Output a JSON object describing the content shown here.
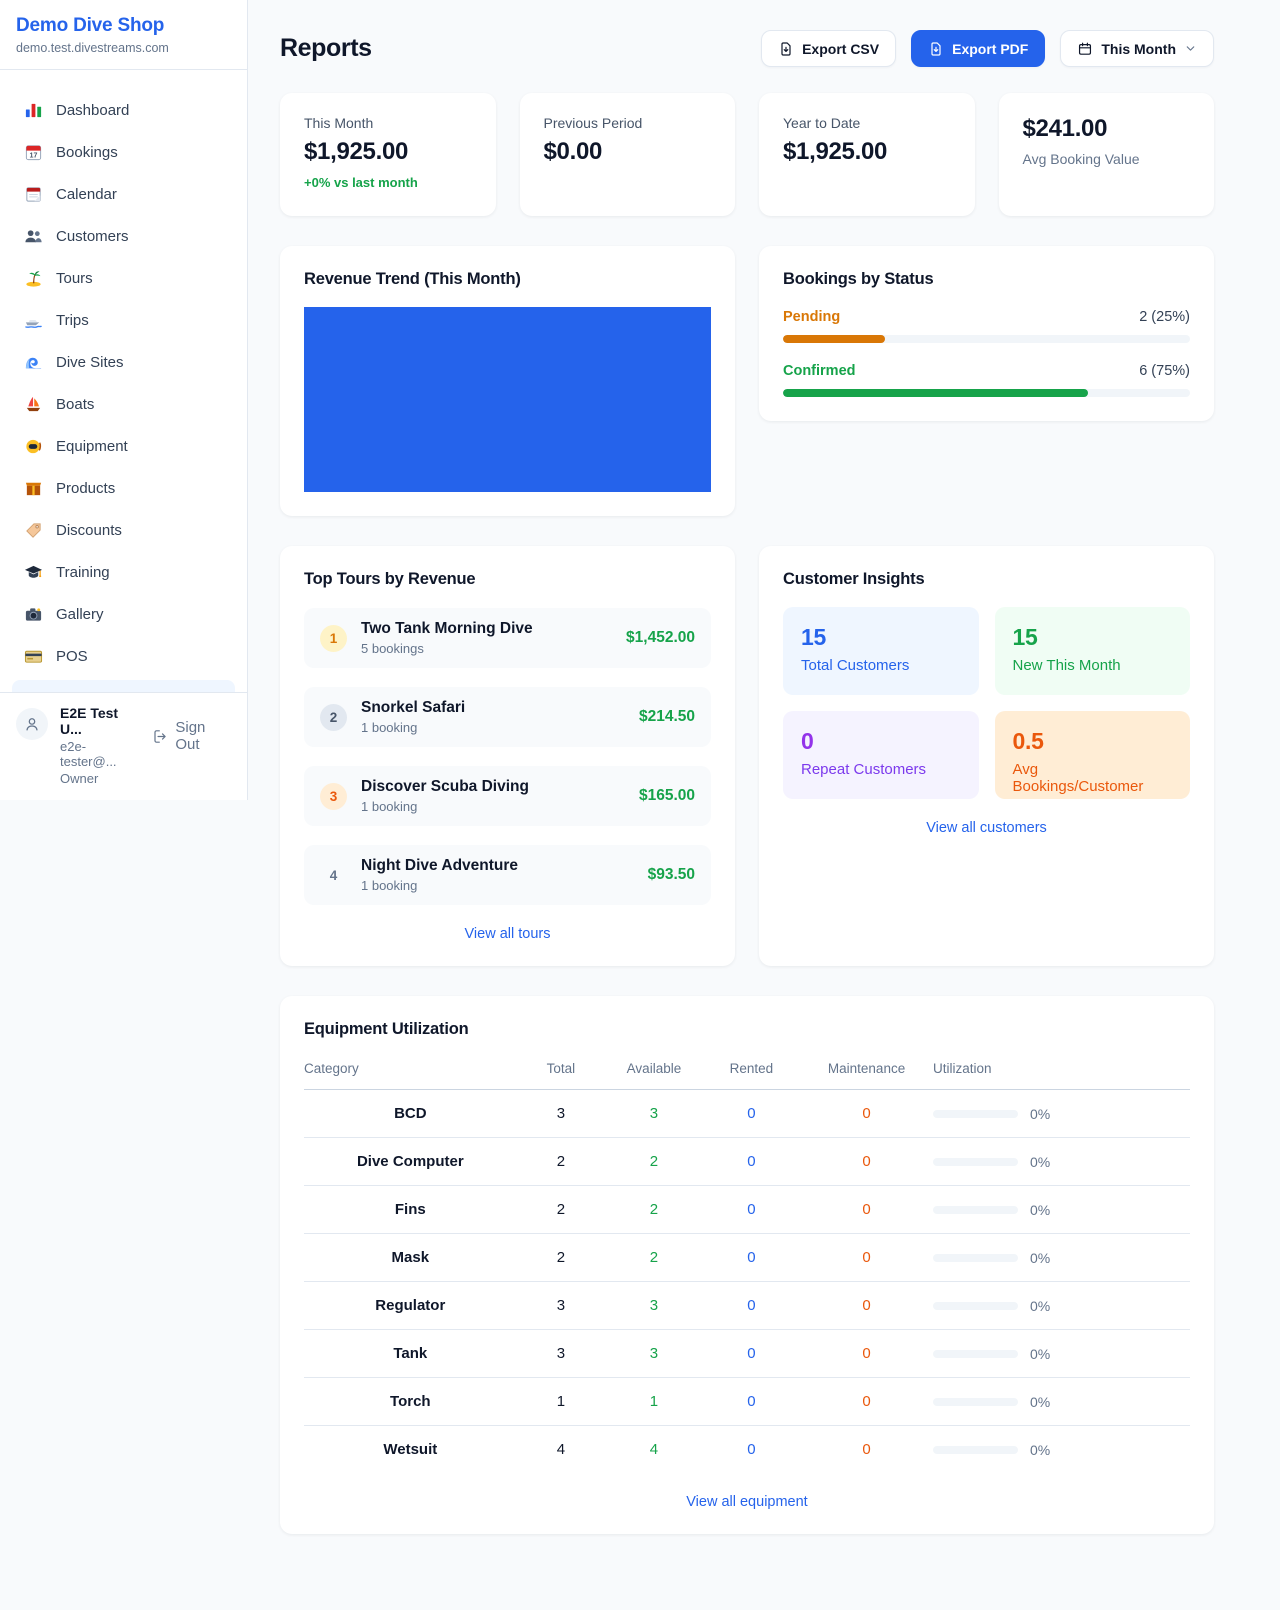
{
  "colors": {
    "accent_blue": "#2563eb",
    "green": "#16a34a",
    "amber": "#d97706",
    "orange": "#ea580c",
    "purple": "#9333ea",
    "page_bg": "#f8fafc"
  },
  "sidebar": {
    "shop_name": "Demo Dive Shop",
    "shop_domain": "demo.test.divestreams.com",
    "items": [
      {
        "icon": "bar-chart-icon",
        "label": "Dashboard"
      },
      {
        "icon": "calendar-date-icon",
        "label": "Bookings"
      },
      {
        "icon": "tear-calendar-icon",
        "label": "Calendar"
      },
      {
        "icon": "people-icon",
        "label": "Customers"
      },
      {
        "icon": "palm-island-icon",
        "label": "Tours"
      },
      {
        "icon": "speedboat-icon",
        "label": "Trips"
      },
      {
        "icon": "wave-icon",
        "label": "Dive Sites"
      },
      {
        "icon": "sailboat-icon",
        "label": "Boats"
      },
      {
        "icon": "dive-mask-icon",
        "label": "Equipment"
      },
      {
        "icon": "package-icon",
        "label": "Products"
      },
      {
        "icon": "tag-icon",
        "label": "Discounts"
      },
      {
        "icon": "graduation-cap-icon",
        "label": "Training"
      },
      {
        "icon": "camera-icon",
        "label": "Gallery"
      },
      {
        "icon": "credit-card-icon",
        "label": "POS"
      }
    ],
    "user": {
      "name": "E2E Test U...",
      "email": "e2e-tester@...",
      "role": "Owner",
      "sign_out_label": "Sign Out"
    }
  },
  "header": {
    "title": "Reports",
    "export_csv_label": "Export CSV",
    "export_pdf_label": "Export PDF",
    "period_label": "This Month"
  },
  "stats": [
    {
      "label": "This Month",
      "value": "$1,925.00",
      "delta": "+0% vs last month"
    },
    {
      "label": "Previous Period",
      "value": "$0.00"
    },
    {
      "label": "Year to Date",
      "value": "$1,925.00"
    },
    {
      "label": "Avg Booking Value",
      "value": "$241.00"
    }
  ],
  "cards": {
    "revenue": {
      "title": "Revenue Trend (This Month)",
      "bar_color": "#2563eb",
      "bar_fill_percent": 100
    },
    "status": {
      "title": "Bookings by Status",
      "rows": [
        {
          "label": "Pending",
          "count": "2 (25%)",
          "percent": 25,
          "color": "#d97706"
        },
        {
          "label": "Confirmed",
          "count": "6 (75%)",
          "percent": 75,
          "color": "#16a34a"
        }
      ]
    },
    "tours": {
      "title": "Top Tours by Revenue",
      "items": [
        {
          "rank": "1",
          "name": "Two Tank Morning Dive",
          "bookings": "5 bookings",
          "amount": "$1,452.00"
        },
        {
          "rank": "2",
          "name": "Snorkel Safari",
          "bookings": "1 booking",
          "amount": "$214.50"
        },
        {
          "rank": "3",
          "name": "Discover Scuba Diving",
          "bookings": "1 booking",
          "amount": "$165.00"
        },
        {
          "rank": "4",
          "name": "Night Dive Adventure",
          "bookings": "1 booking",
          "amount": "$93.50"
        }
      ],
      "view_all_label": "View all tours"
    },
    "insights": {
      "title": "Customer Insights",
      "tiles": [
        {
          "value": "15",
          "label": "Total Customers",
          "color": "#2563eb"
        },
        {
          "value": "15",
          "label": "New This Month",
          "color": "#16a34a"
        },
        {
          "value": "0",
          "label": "Repeat Customers",
          "color": "#9333ea"
        },
        {
          "value": "0.5",
          "label": "Avg Bookings/Customer",
          "color": "#ea580c"
        }
      ],
      "view_all_label": "View all customers"
    },
    "equipment": {
      "title": "Equipment Utilization",
      "columns": [
        "Category",
        "Total",
        "Available",
        "Rented",
        "Maintenance",
        "Utilization"
      ],
      "rows": [
        {
          "category": "BCD",
          "total": "3",
          "available": "3",
          "rented": "0",
          "maintenance": "0",
          "utilization_percent": 0,
          "utilization_label": "0%"
        },
        {
          "category": "Dive Computer",
          "total": "2",
          "available": "2",
          "rented": "0",
          "maintenance": "0",
          "utilization_percent": 0,
          "utilization_label": "0%"
        },
        {
          "category": "Fins",
          "total": "2",
          "available": "2",
          "rented": "0",
          "maintenance": "0",
          "utilization_percent": 0,
          "utilization_label": "0%"
        },
        {
          "category": "Mask",
          "total": "2",
          "available": "2",
          "rented": "0",
          "maintenance": "0",
          "utilization_percent": 0,
          "utilization_label": "0%"
        },
        {
          "category": "Regulator",
          "total": "3",
          "available": "3",
          "rented": "0",
          "maintenance": "0",
          "utilization_percent": 0,
          "utilization_label": "0%"
        },
        {
          "category": "Tank",
          "total": "3",
          "available": "3",
          "rented": "0",
          "maintenance": "0",
          "utilization_percent": 0,
          "utilization_label": "0%"
        },
        {
          "category": "Torch",
          "total": "1",
          "available": "1",
          "rented": "0",
          "maintenance": "0",
          "utilization_percent": 0,
          "utilization_label": "0%"
        },
        {
          "category": "Wetsuit",
          "total": "4",
          "available": "4",
          "rented": "0",
          "maintenance": "0",
          "utilization_percent": 0,
          "utilization_label": "0%"
        }
      ],
      "view_all_label": "View all equipment"
    }
  }
}
